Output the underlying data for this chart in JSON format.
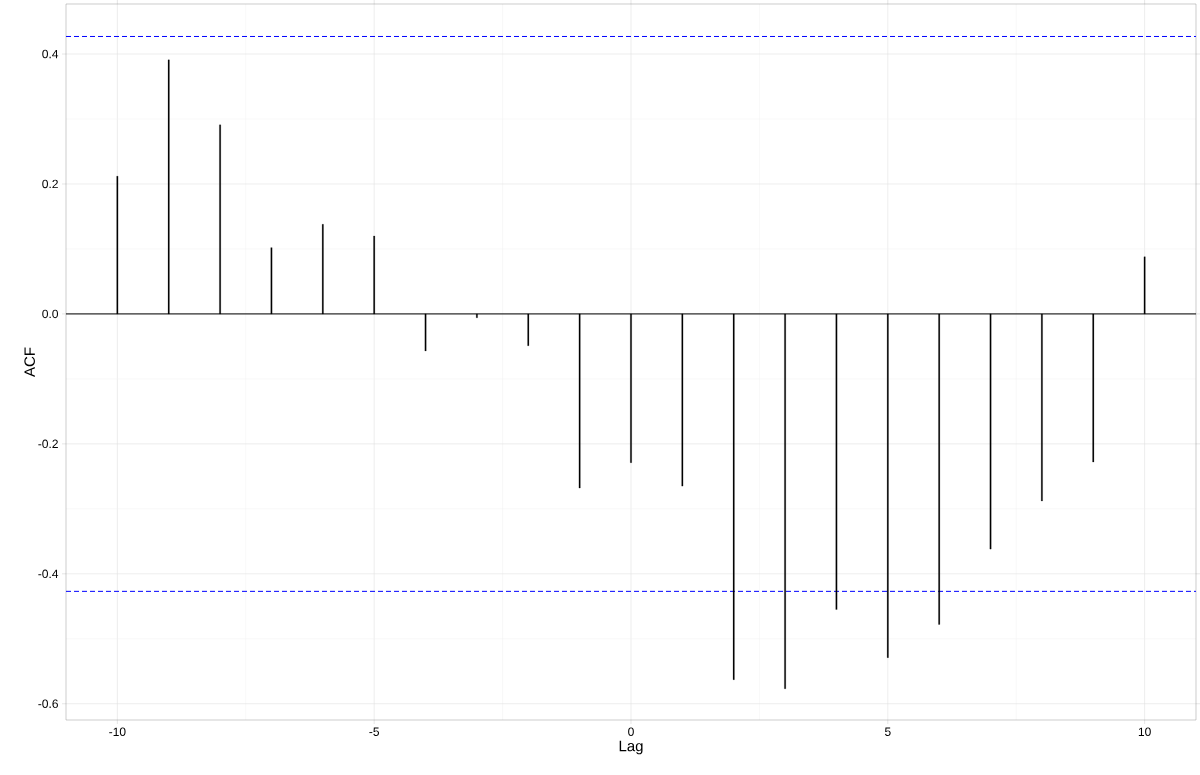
{
  "chart_data": {
    "type": "bar",
    "color": "#000000",
    "xlabel": "Lag",
    "ylabel": "ACF",
    "x": [
      -10,
      -9,
      -8,
      -7,
      -6,
      -5,
      -4,
      -3,
      -2,
      -1,
      0,
      1,
      2,
      3,
      4,
      5,
      6,
      7,
      8,
      9,
      10
    ],
    "values": [
      0.212,
      0.391,
      0.291,
      0.102,
      0.138,
      0.12,
      -0.057,
      -0.006,
      -0.049,
      -0.268,
      -0.229,
      -0.265,
      -0.563,
      -0.577,
      -0.455,
      -0.529,
      -0.478,
      -0.362,
      -0.288,
      -0.228,
      0.088
    ],
    "xlim": [
      -11,
      11
    ],
    "ylim": [
      -0.625,
      0.477
    ],
    "xticks": [
      -10,
      -5,
      0,
      5,
      10
    ],
    "yticks": [
      -0.6,
      -0.4,
      -0.2,
      {
        "value": 0,
        "label": "0.0"
      },
      0.2,
      0.4
    ],
    "grid": true,
    "ref_lines": [
      {
        "axis": "y",
        "value": 0,
        "color": "#000000",
        "line_style": "solid"
      },
      {
        "axis": "y",
        "value": 0.427,
        "color": "#0000ff",
        "line_style": "dashed"
      },
      {
        "axis": "y",
        "value": -0.427,
        "color": "#0000ff",
        "line_style": "dashed"
      }
    ]
  }
}
